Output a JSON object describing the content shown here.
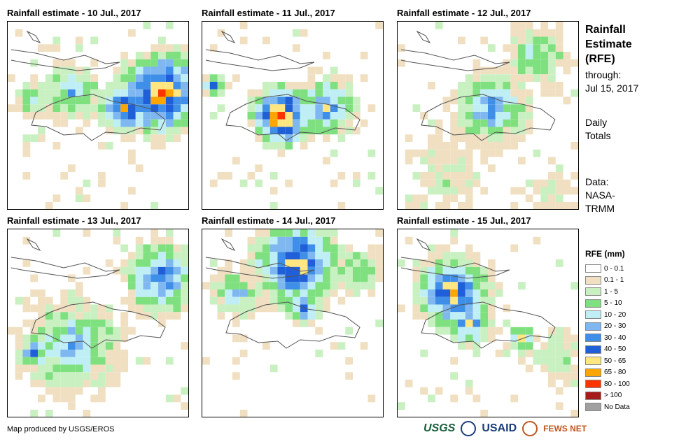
{
  "panels": [
    {
      "title": "Rainfall estimate - 10 Jul., 2017"
    },
    {
      "title": "Rainfall estimate - 11 Jul., 2017"
    },
    {
      "title": "Rainfall estimate - 12 Jul., 2017"
    },
    {
      "title": "Rainfall estimate - 13 Jul., 2017"
    },
    {
      "title": "Rainfall estimate - 14 Jul., 2017"
    },
    {
      "title": "Rainfall estimate - 15 Jul., 2017"
    }
  ],
  "side": {
    "title_1": "Rainfall",
    "title_2": "Estimate",
    "title_3": "(RFE)",
    "through_1": "through:",
    "through_2": "Jul 15, 2017",
    "daily_1": "Daily",
    "daily_2": "Totals",
    "data_1": "Data:",
    "data_2": "NASA-",
    "data_3": "TRMM"
  },
  "legend": {
    "title": "RFE (mm)",
    "items": [
      {
        "label": "0 - 0.1",
        "color": "#ffffff"
      },
      {
        "label": "0.1 - 1",
        "color": "#f0dfc0"
      },
      {
        "label": "1 - 5",
        "color": "#c8f0c0"
      },
      {
        "label": "5 - 10",
        "color": "#7fe07f"
      },
      {
        "label": "10 - 20",
        "color": "#bfeff5"
      },
      {
        "label": "20 - 30",
        "color": "#7fb8f0"
      },
      {
        "label": "30 - 40",
        "color": "#3f8fe8"
      },
      {
        "label": "40 - 50",
        "color": "#1f5fd8"
      },
      {
        "label": "50 - 65",
        "color": "#ffe680"
      },
      {
        "label": "65 - 80",
        "color": "#ffa500"
      },
      {
        "label": "80 - 100",
        "color": "#ff3300"
      },
      {
        "label": "> 100",
        "color": "#a51c1c"
      },
      {
        "label": "No Data",
        "color": "#a0a0a0"
      }
    ]
  },
  "footer": {
    "credit": "Map produced by USGS/EROS"
  },
  "logos": {
    "usgs": "USGS",
    "usaid": "USAID",
    "fews": "FEWS NET"
  },
  "rain_grid_note_cols": 24
}
